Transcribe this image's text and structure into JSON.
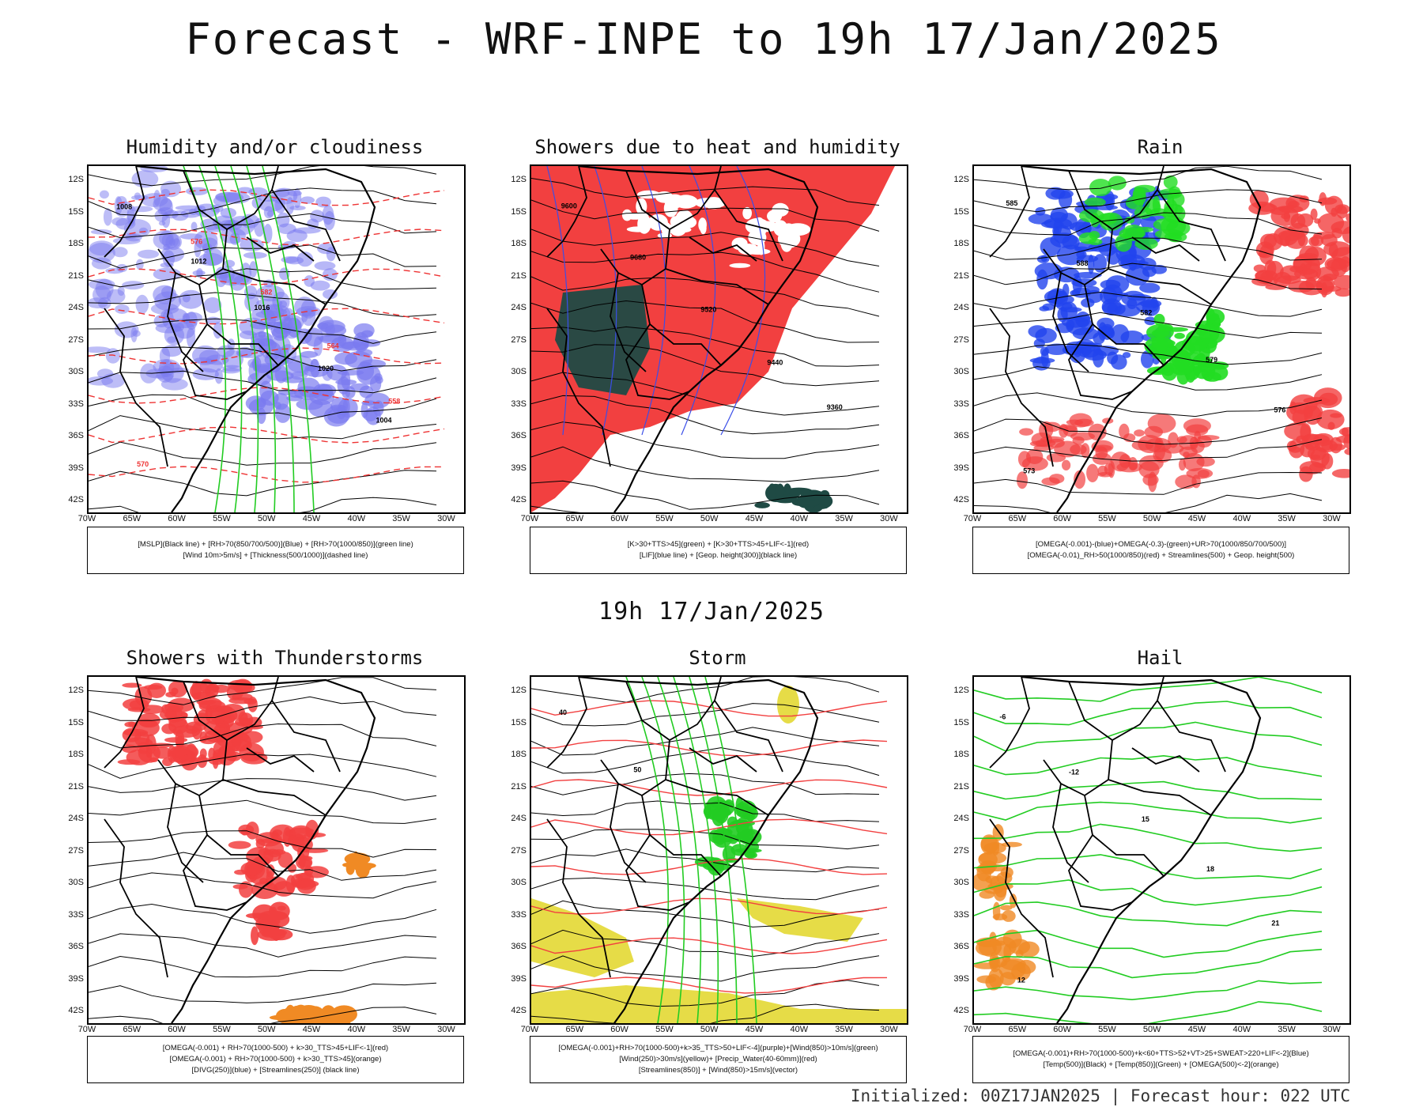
{
  "title": "Forecast - WRF-INPE to 19h 17/Jan/2025",
  "mid_title": "19h 17/Jan/2025",
  "footer": "Initialized: 00Z17JAN2025 | Forecast hour: 022 UTC",
  "lat_labels": [
    "12S",
    "15S",
    "18S",
    "21S",
    "24S",
    "27S",
    "30S",
    "33S",
    "36S",
    "39S",
    "42S"
  ],
  "lon_labels": [
    "70W",
    "65W",
    "60W",
    "55W",
    "50W",
    "45W",
    "40W",
    "35W",
    "30W"
  ],
  "panels": [
    {
      "title": "Humidity and/or cloudiness",
      "legend": [
        "[MSLP](Black line) + [RH>70(850/700/500)](Blue) + [RH>70(1000/850)](green line)",
        "[Wind 10m>5m/s] + [Thickness(500/1000)](dashed line)"
      ],
      "labels": [
        "1008",
        "1012",
        "1016",
        "1020",
        "1004",
        "570",
        "576",
        "582",
        "564",
        "558"
      ]
    },
    {
      "title": "Showers due to heat and humidity",
      "legend": [
        "[K>30+TTS>45](green) + [K>30+TTS>45+LIF<-1](red)",
        "[LIF](blue line) + [Geop. height(300)](black line)"
      ],
      "labels": [
        "9600",
        "9680",
        "9520",
        "9440",
        "9360"
      ]
    },
    {
      "title": "Rain",
      "legend": [
        "[OMEGA(-0.001)-(blue)+OMEGA(-0.3)-(green)+UR>70(1000/850/700/500)]",
        "[OMEGA(-0.01)_RH>50(1000/850)(red) + Streamlines(500) + Geop. height(500)"
      ],
      "labels": [
        "585",
        "588",
        "582",
        "579",
        "576",
        "573"
      ]
    },
    {
      "title": "Showers with Thunderstorms",
      "legend": [
        "[OMEGA(-0.001) + RH>70(1000-500) + k>30_TTS>45+LIF<-1](red)",
        "[OMEGA(-0.001) + RH>70(1000-500) + k>30_TTS>45](orange)",
        "[DIVG(250)](blue) + [Streamlines(250)] (black line)"
      ],
      "labels": []
    },
    {
      "title": "Storm",
      "legend": [
        "[OMEGA(-0.001)+RH>70(1000-500)+k>35_TTS>50+LIF<-4](purple)+[Wind(850)>10m/s](green)",
        "[Wind(250)>30m/s](yellow)+ [Precip_Water(40-60mm)](red)",
        "[Streamlines(850)] + [Wind(850)>15m/s](vector)"
      ],
      "labels": [
        "40",
        "50"
      ]
    },
    {
      "title": "Hail",
      "legend": [
        "[OMEGA(-0.001)+RH>70(1000-500)+k<60+TTS>52+VT>25+SWEAT>220+LIF<-2](Blue)",
        "[Temp(500)](Black) + [Temp(850)](Green) + [OMEGA(500)<-2](orange)"
      ],
      "labels": [
        "-6",
        "-12",
        "15",
        "18",
        "21",
        "12"
      ]
    }
  ],
  "colors": {
    "black_contour": "#000000",
    "humidity_blue": "#7b7bf0",
    "green_line": "#22cc22",
    "red_dashed": "#ee3333",
    "shower_red": "#f24040",
    "shower_green": "#1f4a44",
    "orange": "#f08a24",
    "yellow": "#e3d833",
    "lif_blue": "#3a4ee8"
  }
}
